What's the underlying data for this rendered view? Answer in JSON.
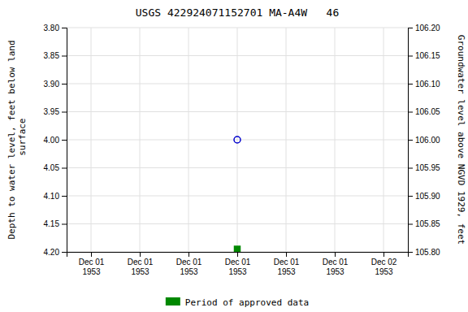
{
  "chart_data": {
    "type": "scatter",
    "title": "USGS 422924071152701 MA-A4W   46",
    "ylabel": "Depth to water level, feet below land\n surface",
    "y2label": "Groundwater level above NGVD 1929, feet",
    "categories": [
      "Dec 01\n1953",
      "Dec 01\n1953",
      "Dec 01\n1953",
      "Dec 01\n1953",
      "Dec 01\n1953",
      "Dec 01\n1953",
      "Dec 02\n1953"
    ],
    "series": [
      {
        "color": "#0000cc",
        "marker": "circle-open",
        "values": [
          null,
          null,
          null,
          4.0,
          null,
          null,
          null
        ]
      },
      {
        "name": "Period of approved data",
        "color": "#008800",
        "marker": "square",
        "values": [
          null,
          null,
          null,
          4.195,
          null,
          null,
          null
        ]
      }
    ],
    "ylim": [
      4.2,
      3.8
    ],
    "yticks": [
      {
        "value": 3.8,
        "label": "3.80"
      },
      {
        "value": 3.85,
        "label": "3.85"
      },
      {
        "value": 3.9,
        "label": "3.90"
      },
      {
        "value": 3.95,
        "label": "3.95"
      },
      {
        "value": 4.0,
        "label": "4.00"
      },
      {
        "value": 4.05,
        "label": "4.05"
      },
      {
        "value": 4.1,
        "label": "4.10"
      },
      {
        "value": 4.15,
        "label": "4.15"
      },
      {
        "value": 4.2,
        "label": "4.20"
      }
    ],
    "y2lim": [
      105.8,
      106.2
    ],
    "y2ticks": [
      {
        "value": 105.8,
        "label": "105.80"
      },
      {
        "value": 105.85,
        "label": "105.85"
      },
      {
        "value": 105.9,
        "label": "105.90"
      },
      {
        "value": 105.95,
        "label": "105.95"
      },
      {
        "value": 106.0,
        "label": "106.00"
      },
      {
        "value": 106.05,
        "label": "106.05"
      },
      {
        "value": 106.1,
        "label": "106.10"
      },
      {
        "value": 106.15,
        "label": "106.15"
      },
      {
        "value": 106.2,
        "label": "106.20"
      }
    ],
    "grid": true,
    "legend": "bottom"
  }
}
